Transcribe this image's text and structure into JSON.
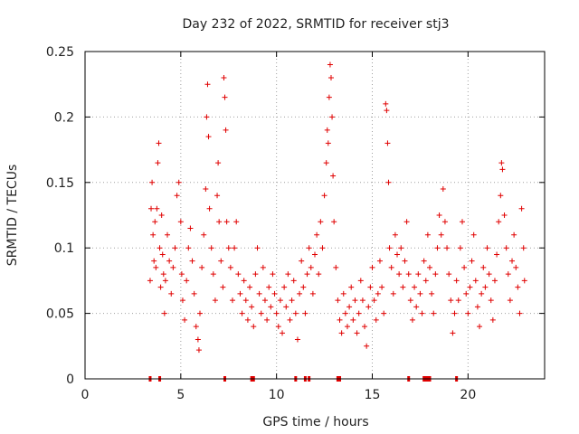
{
  "chart_data": {
    "type": "scatter",
    "title": "Day 232 of 2022, SRMTID for receiver stj3",
    "xlabel": "GPS time / hours",
    "ylabel": "SRMTID / TECUs",
    "xlim": [
      0,
      24
    ],
    "ylim": [
      0,
      0.25
    ],
    "xticks": [
      0,
      5,
      10,
      15,
      20
    ],
    "xtick_labels": [
      "0",
      "5",
      "10",
      "15",
      "20"
    ],
    "yticks": [
      0,
      0.05,
      0.1,
      0.15,
      0.2,
      0.25
    ],
    "ytick_labels": [
      "0",
      "0.05",
      "0.1",
      "0.15",
      "0.2",
      "0.25"
    ],
    "grid": true,
    "marker": "+",
    "color": "#e00000",
    "series": [
      {
        "name": "SRMTID",
        "points": [
          [
            3.4,
            0.075
          ],
          [
            3.45,
            0.13
          ],
          [
            3.5,
            0.15
          ],
          [
            3.55,
            0.11
          ],
          [
            3.6,
            0.09
          ],
          [
            3.65,
            0.12
          ],
          [
            3.7,
            0.085
          ],
          [
            3.75,
            0.13
          ],
          [
            3.8,
            0.165
          ],
          [
            3.85,
            0.18
          ],
          [
            3.9,
            0.1
          ],
          [
            3.95,
            0.07
          ],
          [
            4.0,
            0.125
          ],
          [
            4.05,
            0.095
          ],
          [
            4.1,
            0.08
          ],
          [
            4.15,
            0.05
          ],
          [
            4.2,
            0.075
          ],
          [
            4.3,
            0.11
          ],
          [
            4.4,
            0.09
          ],
          [
            4.5,
            0.065
          ],
          [
            4.6,
            0.085
          ],
          [
            4.7,
            0.1
          ],
          [
            4.8,
            0.14
          ],
          [
            4.9,
            0.15
          ],
          [
            5.0,
            0.12
          ],
          [
            5.05,
            0.08
          ],
          [
            5.1,
            0.06
          ],
          [
            5.2,
            0.045
          ],
          [
            5.3,
            0.075
          ],
          [
            5.4,
            0.1
          ],
          [
            5.5,
            0.115
          ],
          [
            5.6,
            0.09
          ],
          [
            5.7,
            0.065
          ],
          [
            5.8,
            0.04
          ],
          [
            5.9,
            0.03
          ],
          [
            5.95,
            0.022
          ],
          [
            6.0,
            0.05
          ],
          [
            6.1,
            0.085
          ],
          [
            6.2,
            0.11
          ],
          [
            6.3,
            0.145
          ],
          [
            6.35,
            0.2
          ],
          [
            6.4,
            0.225
          ],
          [
            6.45,
            0.185
          ],
          [
            6.5,
            0.13
          ],
          [
            6.6,
            0.1
          ],
          [
            6.7,
            0.08
          ],
          [
            6.8,
            0.06
          ],
          [
            6.9,
            0.14
          ],
          [
            6.95,
            0.165
          ],
          [
            7.0,
            0.12
          ],
          [
            7.1,
            0.09
          ],
          [
            7.2,
            0.07
          ],
          [
            7.25,
            0.23
          ],
          [
            7.3,
            0.215
          ],
          [
            7.35,
            0.19
          ],
          [
            7.4,
            0.12
          ],
          [
            7.5,
            0.1
          ],
          [
            7.6,
            0.085
          ],
          [
            7.7,
            0.06
          ],
          [
            7.8,
            0.1
          ],
          [
            7.9,
            0.12
          ],
          [
            8.0,
            0.08
          ],
          [
            8.1,
            0.065
          ],
          [
            8.2,
            0.05
          ],
          [
            8.3,
            0.075
          ],
          [
            8.4,
            0.06
          ],
          [
            8.5,
            0.045
          ],
          [
            8.6,
            0.07
          ],
          [
            8.7,
            0.055
          ],
          [
            8.8,
            0.04
          ],
          [
            8.9,
            0.08
          ],
          [
            9.0,
            0.1
          ],
          [
            9.1,
            0.065
          ],
          [
            9.2,
            0.05
          ],
          [
            9.3,
            0.085
          ],
          [
            9.4,
            0.06
          ],
          [
            9.5,
            0.045
          ],
          [
            9.6,
            0.07
          ],
          [
            9.7,
            0.055
          ],
          [
            9.8,
            0.08
          ],
          [
            9.9,
            0.065
          ],
          [
            10.0,
            0.05
          ],
          [
            10.1,
            0.04
          ],
          [
            10.2,
            0.06
          ],
          [
            10.3,
            0.035
          ],
          [
            10.4,
            0.07
          ],
          [
            10.5,
            0.055
          ],
          [
            10.6,
            0.08
          ],
          [
            10.7,
            0.045
          ],
          [
            10.8,
            0.06
          ],
          [
            10.9,
            0.075
          ],
          [
            11.0,
            0.05
          ],
          [
            11.1,
            0.03
          ],
          [
            11.2,
            0.065
          ],
          [
            11.3,
            0.09
          ],
          [
            11.4,
            0.07
          ],
          [
            11.5,
            0.05
          ],
          [
            11.6,
            0.08
          ],
          [
            11.7,
            0.1
          ],
          [
            11.8,
            0.085
          ],
          [
            11.9,
            0.065
          ],
          [
            12.0,
            0.095
          ],
          [
            12.1,
            0.11
          ],
          [
            12.2,
            0.08
          ],
          [
            12.3,
            0.12
          ],
          [
            12.4,
            0.1
          ],
          [
            12.5,
            0.14
          ],
          [
            12.6,
            0.165
          ],
          [
            12.65,
            0.19
          ],
          [
            12.7,
            0.18
          ],
          [
            12.75,
            0.215
          ],
          [
            12.8,
            0.24
          ],
          [
            12.85,
            0.23
          ],
          [
            12.9,
            0.2
          ],
          [
            12.95,
            0.155
          ],
          [
            13.0,
            0.12
          ],
          [
            13.1,
            0.085
          ],
          [
            13.2,
            0.06
          ],
          [
            13.3,
            0.045
          ],
          [
            13.4,
            0.035
          ],
          [
            13.5,
            0.065
          ],
          [
            13.6,
            0.05
          ],
          [
            13.7,
            0.04
          ],
          [
            13.8,
            0.055
          ],
          [
            13.9,
            0.07
          ],
          [
            14.0,
            0.045
          ],
          [
            14.1,
            0.06
          ],
          [
            14.2,
            0.035
          ],
          [
            14.3,
            0.05
          ],
          [
            14.4,
            0.075
          ],
          [
            14.5,
            0.06
          ],
          [
            14.6,
            0.04
          ],
          [
            14.7,
            0.025
          ],
          [
            14.8,
            0.055
          ],
          [
            14.9,
            0.07
          ],
          [
            15.0,
            0.085
          ],
          [
            15.1,
            0.06
          ],
          [
            15.2,
            0.045
          ],
          [
            15.3,
            0.065
          ],
          [
            15.4,
            0.09
          ],
          [
            15.5,
            0.07
          ],
          [
            15.6,
            0.05
          ],
          [
            15.7,
            0.21
          ],
          [
            15.75,
            0.205
          ],
          [
            15.8,
            0.18
          ],
          [
            15.85,
            0.15
          ],
          [
            15.9,
            0.1
          ],
          [
            16.0,
            0.085
          ],
          [
            16.1,
            0.065
          ],
          [
            16.2,
            0.11
          ],
          [
            16.3,
            0.095
          ],
          [
            16.4,
            0.08
          ],
          [
            16.5,
            0.1
          ],
          [
            16.6,
            0.07
          ],
          [
            16.7,
            0.09
          ],
          [
            16.8,
            0.12
          ],
          [
            16.9,
            0.08
          ],
          [
            17.0,
            0.06
          ],
          [
            17.1,
            0.045
          ],
          [
            17.2,
            0.07
          ],
          [
            17.3,
            0.055
          ],
          [
            17.4,
            0.08
          ],
          [
            17.5,
            0.065
          ],
          [
            17.6,
            0.05
          ],
          [
            17.7,
            0.09
          ],
          [
            17.8,
            0.075
          ],
          [
            17.9,
            0.11
          ],
          [
            18.0,
            0.085
          ],
          [
            18.1,
            0.065
          ],
          [
            18.2,
            0.05
          ],
          [
            18.3,
            0.08
          ],
          [
            18.4,
            0.1
          ],
          [
            18.5,
            0.125
          ],
          [
            18.6,
            0.11
          ],
          [
            18.7,
            0.145
          ],
          [
            18.8,
            0.12
          ],
          [
            18.9,
            0.1
          ],
          [
            19.0,
            0.08
          ],
          [
            19.1,
            0.06
          ],
          [
            19.2,
            0.035
          ],
          [
            19.3,
            0.05
          ],
          [
            19.4,
            0.075
          ],
          [
            19.5,
            0.06
          ],
          [
            19.6,
            0.1
          ],
          [
            19.7,
            0.12
          ],
          [
            19.8,
            0.085
          ],
          [
            19.9,
            0.065
          ],
          [
            20.0,
            0.05
          ],
          [
            20.1,
            0.07
          ],
          [
            20.2,
            0.09
          ],
          [
            20.3,
            0.11
          ],
          [
            20.4,
            0.075
          ],
          [
            20.5,
            0.055
          ],
          [
            20.6,
            0.04
          ],
          [
            20.7,
            0.065
          ],
          [
            20.8,
            0.085
          ],
          [
            20.9,
            0.07
          ],
          [
            21.0,
            0.1
          ],
          [
            21.1,
            0.08
          ],
          [
            21.2,
            0.06
          ],
          [
            21.3,
            0.045
          ],
          [
            21.4,
            0.075
          ],
          [
            21.5,
            0.095
          ],
          [
            21.6,
            0.12
          ],
          [
            21.7,
            0.14
          ],
          [
            21.75,
            0.165
          ],
          [
            21.8,
            0.16
          ],
          [
            21.9,
            0.125
          ],
          [
            22.0,
            0.1
          ],
          [
            22.1,
            0.08
          ],
          [
            22.2,
            0.06
          ],
          [
            22.3,
            0.09
          ],
          [
            22.4,
            0.11
          ],
          [
            22.5,
            0.085
          ],
          [
            22.6,
            0.07
          ],
          [
            22.7,
            0.05
          ],
          [
            22.8,
            0.13
          ],
          [
            22.9,
            0.1
          ],
          [
            22.95,
            0.075
          ]
        ]
      }
    ],
    "zero_marks_x": [
      3.4,
      3.9,
      7.3,
      8.7,
      8.8,
      11.0,
      11.5,
      11.7,
      13.2,
      13.3,
      16.9,
      17.7,
      17.8,
      17.9,
      18.0,
      19.4
    ]
  }
}
